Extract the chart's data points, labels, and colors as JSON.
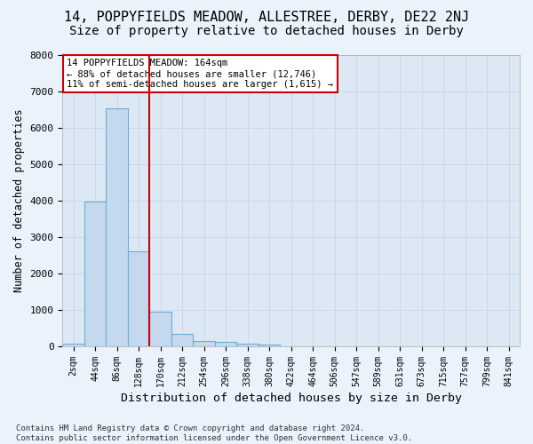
{
  "title_line1": "14, POPPYFIELDS MEADOW, ALLESTREE, DERBY, DE22 2NJ",
  "title_line2": "Size of property relative to detached houses in Derby",
  "xlabel": "Distribution of detached houses by size in Derby",
  "ylabel": "Number of detached properties",
  "footnote": "Contains HM Land Registry data © Crown copyright and database right 2024.\nContains public sector information licensed under the Open Government Licence v3.0.",
  "bar_labels": [
    "2sqm",
    "44sqm",
    "86sqm",
    "128sqm",
    "170sqm",
    "212sqm",
    "254sqm",
    "296sqm",
    "338sqm",
    "380sqm",
    "422sqm",
    "464sqm",
    "506sqm",
    "547sqm",
    "589sqm",
    "631sqm",
    "673sqm",
    "715sqm",
    "757sqm",
    "799sqm",
    "841sqm"
  ],
  "bar_values": [
    80,
    3970,
    6530,
    2610,
    940,
    350,
    145,
    120,
    75,
    60,
    0,
    0,
    0,
    0,
    0,
    0,
    0,
    0,
    0,
    0,
    0
  ],
  "bar_color": "#c5d9ee",
  "bar_edge_color": "#6aaed6",
  "vline_color": "#cc0000",
  "annotation_text": "14 POPPYFIELDS MEADOW: 164sqm\n← 88% of detached houses are smaller (12,746)\n11% of semi-detached houses are larger (1,615) →",
  "annotation_box_color": "#cc0000",
  "annotation_box_fill": "#ffffff",
  "ylim": [
    0,
    8000
  ],
  "yticks": [
    0,
    1000,
    2000,
    3000,
    4000,
    5000,
    6000,
    7000,
    8000
  ],
  "grid_color": "#c8d8e8",
  "bg_color": "#dce9f5",
  "fig_bg_color": "#eaf2fb",
  "title1_fontsize": 11,
  "title2_fontsize": 10,
  "xlabel_fontsize": 9.5,
  "ylabel_fontsize": 8.5,
  "footnote_fontsize": 6.5
}
